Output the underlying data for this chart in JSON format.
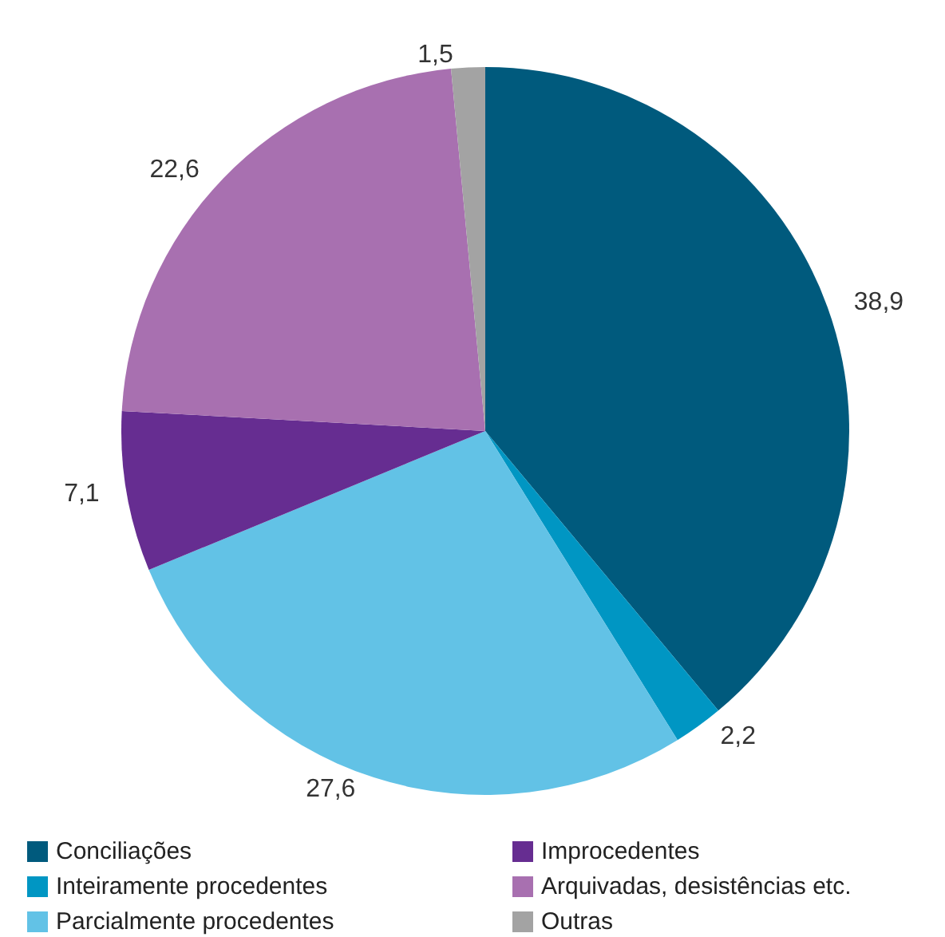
{
  "chart_data": {
    "type": "pie",
    "categories": [
      "Conciliações",
      "Inteiramente procedentes",
      "Parcialmente procedentes",
      "Improcedentes",
      "Arquivadas, desistências etc.",
      "Outras"
    ],
    "values": [
      38.9,
      2.2,
      27.6,
      7.1,
      22.6,
      1.5
    ],
    "colors": [
      "#005a7d",
      "#0096c3",
      "#62c2e6",
      "#662d91",
      "#a870b0",
      "#a3a3a3"
    ],
    "value_labels": [
      "38,9",
      "2,2",
      "27,6",
      "7,1",
      "22,6",
      "1,5"
    ],
    "legend": "bottom"
  }
}
